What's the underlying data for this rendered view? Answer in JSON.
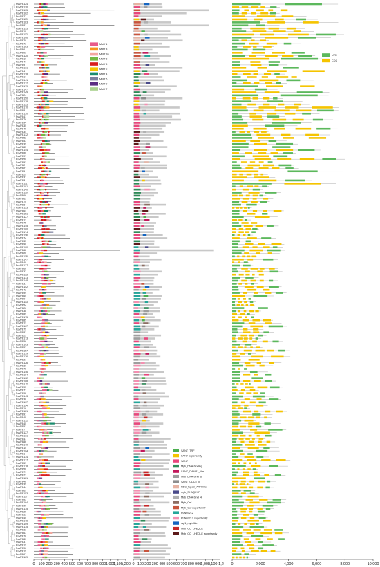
{
  "genes": [
    "PsMYB124",
    "PsMYB126",
    "PsMYB105",
    "PsMYB162",
    "PsMYB27",
    "PsMYB119",
    "PsMYB183",
    "PsMYB81",
    "PsMYB155",
    "PsMYB18",
    "PsMYB112",
    "PsMYB106",
    "PsMYB20",
    "PsMYB73",
    "PsMYB163",
    "PsMYB6",
    "PsMYB93",
    "PsMYB120",
    "PsMYB10",
    "PsMYB47",
    "PsMYB9",
    "PsMYB131",
    "PsMYB4",
    "PsMYB138",
    "PsMYB17",
    "PsMYB141",
    "PsMYB172",
    "PsMYB179",
    "PsMYB147",
    "PsMYB149",
    "PsMYB24",
    "PsMYB150",
    "PsMYB128",
    "PsMYB125",
    "PsMYB170",
    "PsMYB8",
    "PsMYB130",
    "PsMYB41",
    "PsMYB76",
    "PsMYB94",
    "PsMYB35",
    "PsMYB49",
    "PsMYB34",
    "PsMYB132",
    "PsMYB52",
    "PsMYB53",
    "PsMYB39",
    "PsMYB85",
    "PsMYB144",
    "PsMYB88",
    "PsMYB97",
    "PsMYB50",
    "PsMYB57",
    "PsMYB2",
    "PsMYB61",
    "PsMYB5",
    "PsMYB29",
    "PsMYB31",
    "PsMYB3",
    "PsMYB111",
    "PsMYB101",
    "PsMYB140",
    "PsMYB110",
    "PsMYB66",
    "PsMYB65",
    "PsMYB70",
    "PsMYB84",
    "PsMYB123",
    "PsMYB64",
    "PsMYB151",
    "PsMYB127",
    "PsMYB13",
    "PsMYB75",
    "PsMYB145",
    "PsMYB160",
    "PsMYB174",
    "PsMYB118",
    "PsMYB74",
    "PsMYB35",
    "PsMYB98",
    "PsMYB100",
    "PsMYB62",
    "PsMYB68",
    "PsMYB118",
    "PsMYB147",
    "PsMYB40",
    "PsMYB137",
    "PsMYB66",
    "PsMYB32",
    "PsMYB122",
    "PsMYB133",
    "PsMYB148",
    "PsMYB31",
    "PsMYB152",
    "PsMYB42",
    "PsMYB99",
    "PsMYB60",
    "PsMYB94",
    "PsMYB113",
    "PsMYB54",
    "PsMYB26",
    "PsMYB38",
    "PsMYB89",
    "PsMYB175",
    "PsMYB85",
    "PsMYB12",
    "PsMYB167",
    "PsMYB79",
    "PsMYB81",
    "PsMYB25",
    "PsMYB173",
    "PsMYB56",
    "PsMYB103",
    "PsMYB53",
    "PsMYB157",
    "PsMYB139",
    "PsMYB136",
    "PsMYB21",
    "PsMYB126",
    "PsMYB30",
    "PsMYB78",
    "PsMYB146",
    "PsMYB184",
    "PsMYB102",
    "PsMYB168",
    "PsMYB149",
    "PsMYB95",
    "PsMYB77",
    "PsMYB92",
    "PsMYB143",
    "PsMYB36",
    "PsMYB107",
    "PsMYB114",
    "PsMYB16",
    "PsMYB181",
    "PsMYB91",
    "PsMYB49",
    "PsMYB132",
    "PsMYB45",
    "PsMYB51",
    "PsMYB7",
    "PsMYB127",
    "PsMYB131",
    "PsMYB41",
    "PsMYB86",
    "PsMYB170",
    "PsMYB15",
    "PsMYB104",
    "PsMYB1",
    "PsMYB134",
    "PsMYB177",
    "PsMYB59",
    "PsMYB178",
    "PsMYB58",
    "PsMYB71",
    "PsMYB23",
    "PsMYB121",
    "PsMYB48",
    "PsMYB39",
    "PsMYB44",
    "PsMYB69",
    "PsMYB153",
    "PsMYB117",
    "PsMYB82",
    "PsMYB164",
    "PsMYB90",
    "PsMYB135",
    "PsMYB29",
    "PsMYB55",
    "PsMYB40",
    "PsMYB176",
    "PsMYB109",
    "PsMYB135",
    "PsMYB33",
    "PsMYB63",
    "PsMYB76",
    "PsMYB80",
    "PsMYB37",
    "PsMYB11",
    "PsMYB96",
    "PsMYB19",
    "PsMYB67",
    "PsMYB169"
  ],
  "motif_legend": [
    "Motif 1",
    "Motif 8",
    "Motif 10",
    "Motif 3",
    "Motif 5",
    "Motif 2",
    "Motif 4",
    "Motif 6",
    "Motif 9",
    "Motif 7"
  ],
  "motif_colors": [
    "#e85a8a",
    "#f7931e",
    "#f4a6a0",
    "#74b843",
    "#d81e1e",
    "#f5c400",
    "#1a8c6e",
    "#7b7f9e",
    "#5b2d82",
    "#a9d18e"
  ],
  "domain_legend": [
    "SANT_TRF",
    "SANT superfamily",
    "SANT",
    "Myb_DNA-binding",
    "SANT_DAMP1_like",
    "Myb_DNA-bind_6",
    "SANT_CDC5_II",
    "REC_typeB_ARR-like",
    "myb_SHAQKYF",
    "Myb_DNA-bind_4",
    "Myb_Cef",
    "Myb_Cef superfamily",
    "PLN03212",
    "PLN03212 superfamily",
    "rsp1_myb-like",
    "Myb_CC_LHEQLE",
    "Myb_CC_LHEQLE superfamily"
  ],
  "domain_colors": [
    "#4caf50",
    "#f5c400",
    "#e8467c",
    "#2e8b57",
    "#c2185b",
    "#9e9e9e",
    "#8d8d8d",
    "#e6b3a3",
    "#4a4a8a",
    "#b0b0b0",
    "#8d6e63",
    "#c8553d",
    "#26a69a",
    "#f48fb1",
    "#1565c0",
    "#c62828",
    "#5d1a1a"
  ],
  "structure_legend": [
    "UTR",
    "CDS"
  ],
  "structure_colors": [
    "#5cb85c",
    "#f5c400"
  ],
  "axes": {
    "motif_ticks": [
      "0",
      "100",
      "200",
      "300",
      "400",
      "500",
      "600",
      "700",
      "800",
      "900",
      "1,000",
      "1,100",
      "1,200"
    ],
    "domain_ticks": [
      "0",
      "100",
      "200",
      "300",
      "400",
      "500",
      "600",
      "700",
      "800",
      "900",
      "1,000",
      "1,100"
    ],
    "domain_end_label": "1,2",
    "structure_ticks": [
      "0",
      "2,000",
      "4,000",
      "6,000",
      "8,000",
      "10,000"
    ]
  }
}
